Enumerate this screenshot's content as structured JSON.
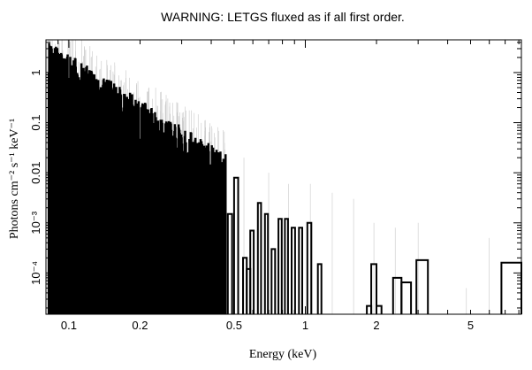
{
  "chart_data": {
    "type": "step",
    "title": "WARNING: LETGS fluxed as if all first order.",
    "xlabel": "Energy (keV)",
    "ylabel": "Photons cm⁻² s⁻¹ keV⁻¹",
    "x_scale": "log",
    "y_scale": "log",
    "xlim": [
      0.08,
      8.2
    ],
    "ylim": [
      1.5e-05,
      4.5
    ],
    "x_ticks": [
      {
        "value": 0.1,
        "label": "0.1"
      },
      {
        "value": 0.2,
        "label": "0.2"
      },
      {
        "value": 0.5,
        "label": "0.5"
      },
      {
        "value": 1,
        "label": "1"
      },
      {
        "value": 2,
        "label": "2"
      },
      {
        "value": 5,
        "label": "5"
      }
    ],
    "y_ticks": [
      {
        "value": 1,
        "label": "1"
      },
      {
        "value": 0.1,
        "label": "0.1"
      },
      {
        "value": 0.01,
        "label": "0.01"
      },
      {
        "value": 0.001,
        "label": "10⁻³"
      },
      {
        "value": 0.0001,
        "label": "10⁻⁴"
      }
    ],
    "grid": false,
    "legend": "none",
    "dense_region": {
      "xmin": 0.082,
      "xmax": 0.46,
      "y_at_xmin": 2.2,
      "y_at_xmax": 0.012
    },
    "sparse_bins": [
      {
        "x0": 0.47,
        "x1": 0.49,
        "y": 0.0015
      },
      {
        "x0": 0.5,
        "x1": 0.52,
        "y": 0.008
      },
      {
        "x0": 0.545,
        "x1": 0.565,
        "y": 0.0002
      },
      {
        "x0": 0.565,
        "x1": 0.585,
        "y": 0.00012
      },
      {
        "x0": 0.585,
        "x1": 0.605,
        "y": 0.0007
      },
      {
        "x0": 0.63,
        "x1": 0.65,
        "y": 0.0025
      },
      {
        "x0": 0.675,
        "x1": 0.695,
        "y": 0.0015
      },
      {
        "x0": 0.72,
        "x1": 0.745,
        "y": 0.0003
      },
      {
        "x0": 0.77,
        "x1": 0.795,
        "y": 0.0012
      },
      {
        "x0": 0.82,
        "x1": 0.845,
        "y": 0.0012
      },
      {
        "x0": 0.875,
        "x1": 0.905,
        "y": 0.0008
      },
      {
        "x0": 0.94,
        "x1": 0.97,
        "y": 0.0008
      },
      {
        "x0": 1.02,
        "x1": 1.06,
        "y": 0.001
      },
      {
        "x0": 1.13,
        "x1": 1.17,
        "y": 0.00015
      },
      {
        "x0": 1.82,
        "x1": 1.9,
        "y": 2.2e-05
      },
      {
        "x0": 1.9,
        "x1": 2.0,
        "y": 0.00015
      },
      {
        "x0": 2.0,
        "x1": 2.1,
        "y": 2.2e-05
      },
      {
        "x0": 2.35,
        "x1": 2.55,
        "y": 8e-05
      },
      {
        "x0": 2.55,
        "x1": 2.8,
        "y": 6.5e-05
      },
      {
        "x0": 2.95,
        "x1": 3.3,
        "y": 0.00018
      },
      {
        "x0": 6.75,
        "x1": 8.2,
        "y": 0.00016
      }
    ],
    "error_bar_upper": [
      {
        "x": 0.55,
        "y": 0.02
      },
      {
        "x": 0.7,
        "y": 0.01
      },
      {
        "x": 0.85,
        "y": 0.006
      },
      {
        "x": 1.05,
        "y": 0.006
      },
      {
        "x": 1.3,
        "y": 0.004
      },
      {
        "x": 1.6,
        "y": 0.003
      },
      {
        "x": 1.95,
        "y": 0.001
      },
      {
        "x": 2.4,
        "y": 0.0008
      },
      {
        "x": 3.0,
        "y": 0.001
      },
      {
        "x": 4.8,
        "y": 5e-05
      },
      {
        "x": 6.0,
        "y": 0.0005
      }
    ]
  }
}
